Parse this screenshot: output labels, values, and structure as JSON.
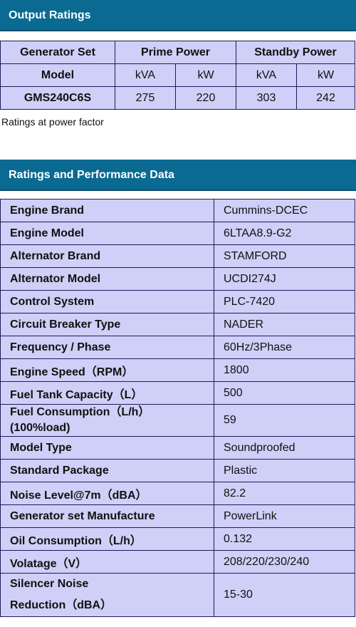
{
  "output": {
    "title": "Output Ratings",
    "col_model_1": "Generator Set",
    "col_model_2": "Model",
    "col_prime": "Prime Power",
    "col_standby": "Standby Power",
    "unit_kva": "kVA",
    "unit_kw": "kW",
    "row": {
      "model": "GMS240C6S",
      "prime_kva": "275",
      "prime_kw": "220",
      "standby_kva": "303",
      "standby_kw": "242"
    },
    "caption": "Ratings at power factor"
  },
  "performance": {
    "title": "Ratings and Performance Data",
    "rows": [
      {
        "label": "Engine Brand",
        "value": "Cummins-DCEC"
      },
      {
        "label": "Engine Model",
        "value": "6LTAA8.9-G2"
      },
      {
        "label": "Alternator Brand",
        "value": "STAMFORD"
      },
      {
        "label": "Alternator Model",
        "value": "UCDI274J"
      },
      {
        "label": "Control System",
        "value": "PLC-7420"
      },
      {
        "label": "Circuit Breaker Type",
        "value": "NADER"
      },
      {
        "label": "Frequency / Phase",
        "value": "60Hz/3Phase"
      },
      {
        "label": "Engine Speed（RPM）",
        "value": "1800"
      },
      {
        "label": "Fuel Tank Capacity（L）",
        "value": "500"
      },
      {
        "label": "Fuel Consumption（L/h）",
        "label2": "(100%load)",
        "value": "59"
      },
      {
        "label": "Model Type",
        "value": "Soundproofed"
      },
      {
        "label": "Standard Package",
        "value": "Plastic"
      },
      {
        "label": "Noise Level@7m（dBA）",
        "value": "82.2"
      },
      {
        "label": "Generator set Manufacture",
        "value": "PowerLink"
      },
      {
        "label": "Oil Consumption（L/h）",
        "value": "0.132"
      },
      {
        "label": "Volatage（V）",
        "value": "208/220/230/240"
      },
      {
        "label": "Silencer Noise",
        "label2": "Reduction（dBA）",
        "value": "15-30"
      }
    ]
  }
}
